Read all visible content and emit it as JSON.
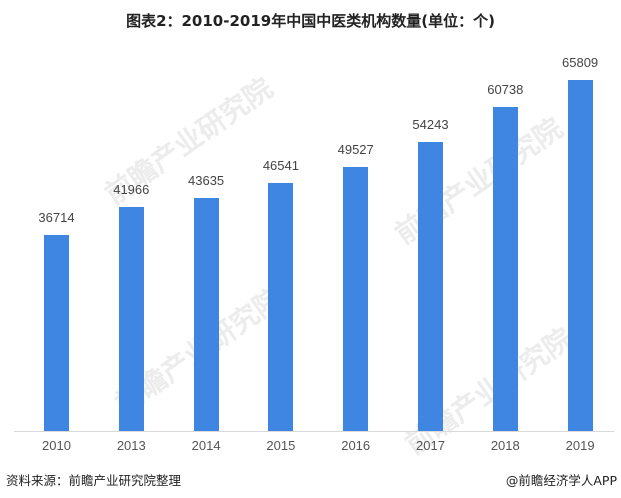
{
  "chart_data": {
    "type": "bar",
    "title": "图表2：2010-2019年中国中医类机构数量(单位：个)",
    "categories": [
      "2010",
      "2013",
      "2014",
      "2015",
      "2016",
      "2017",
      "2018",
      "2019"
    ],
    "values": [
      36714,
      41966,
      43635,
      46541,
      49527,
      54243,
      60738,
      65809
    ],
    "xlabel": "",
    "ylabel": "",
    "ylim": [
      0,
      73300
    ],
    "grid": false,
    "legend": null,
    "bar_color": "#3f86e2"
  },
  "footer": {
    "source": "资料来源：前瞻产业研究院整理",
    "credit": "@前瞻经济学人APP"
  },
  "watermark": "前瞻产业研究院"
}
